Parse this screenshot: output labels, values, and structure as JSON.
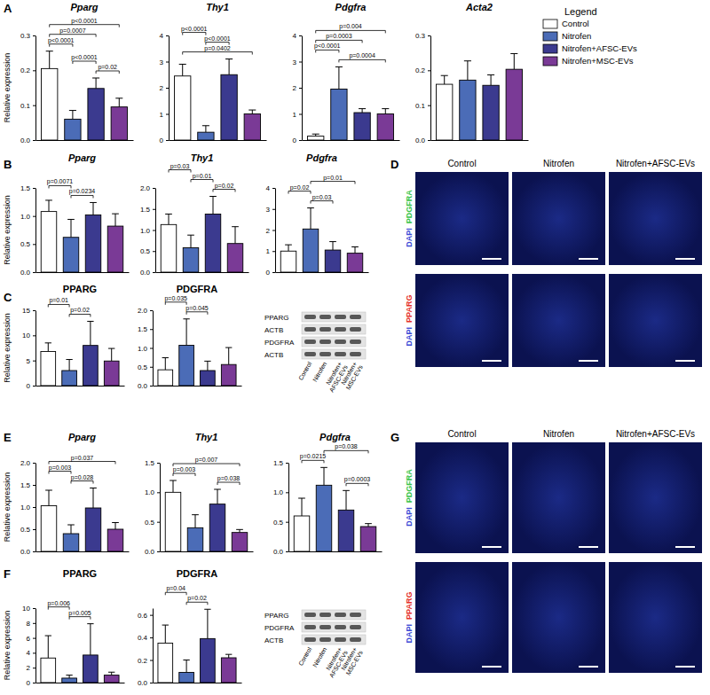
{
  "chart_data": [
    {
      "type": "bar",
      "title": "Pparg",
      "y_label": "Relative expression",
      "categories": [
        null,
        null,
        null,
        null
      ],
      "values": [
        0.205,
        0.06,
        0.148,
        0.095
      ],
      "errors": [
        0.05,
        0.025,
        0.03,
        0.025
      ],
      "colors": [
        "#ffffff",
        "#4b6cb7",
        "#3b3a8f",
        "#7a3a96"
      ],
      "ylim": [
        0,
        0.3
      ],
      "yticks": [
        {
          "value": 0,
          "label": "0.0"
        },
        0.1,
        0.2,
        0.3
      ],
      "tick_labels": "y",
      "annotations": [
        {
          "from": 0,
          "to": 3,
          "label": "p<0.0001"
        },
        {
          "from": 0,
          "to": 2,
          "label": "p=0.0007"
        },
        {
          "from": 0,
          "to": 1,
          "label": "p<0.0001"
        },
        {
          "from": 1,
          "to": 2,
          "label": "p<0.0001"
        },
        {
          "from": 2,
          "to": 3,
          "label": "p=0.02"
        }
      ]
    },
    {
      "type": "bar",
      "title": "Thy1",
      "categories": [
        null,
        null,
        null,
        null
      ],
      "values": [
        2.45,
        0.3,
        2.5,
        1.0
      ],
      "errors": [
        0.45,
        0.25,
        0.6,
        0.15
      ],
      "colors": [
        "#ffffff",
        "#4b6cb7",
        "#3b3a8f",
        "#7a3a96"
      ],
      "ylim": [
        0,
        4
      ],
      "yticks": [
        0,
        1,
        2,
        3,
        4
      ],
      "tick_labels": "y",
      "annotations": [
        {
          "from": 0,
          "to": 1,
          "label": "p<0.0001"
        },
        {
          "from": 1,
          "to": 2,
          "label": "p<0.0001"
        },
        {
          "from": 0,
          "to": 3,
          "label": "p=0.0402"
        }
      ]
    },
    {
      "type": "bar",
      "title": "Pdgfra",
      "categories": [
        null,
        null,
        null,
        null
      ],
      "values": [
        0.15,
        1.95,
        1.05,
        1.0
      ],
      "errors": [
        0.08,
        0.85,
        0.15,
        0.2
      ],
      "colors": [
        "#ffffff",
        "#4b6cb7",
        "#3b3a8f",
        "#7a3a96"
      ],
      "ylim": [
        0,
        4
      ],
      "yticks": [
        0,
        1,
        2,
        3,
        4
      ],
      "tick_labels": "y",
      "annotations": [
        {
          "from": 0,
          "to": 3,
          "label": "p=0.004"
        },
        {
          "from": 0,
          "to": 2,
          "label": "p=0.0003"
        },
        {
          "from": 0,
          "to": 1,
          "label": "p<0.0001"
        },
        {
          "from": 1,
          "to": 3,
          "label": "p=0.0004"
        }
      ]
    },
    {
      "type": "bar",
      "title": "Acta2",
      "categories": [
        null,
        null,
        null,
        null
      ],
      "values": [
        0.16,
        0.172,
        0.157,
        0.203
      ],
      "errors": [
        0.025,
        0.055,
        0.03,
        0.045
      ],
      "colors": [
        "#ffffff",
        "#4b6cb7",
        "#3b3a8f",
        "#7a3a96"
      ],
      "ylim": [
        0,
        0.3
      ],
      "yticks": [
        {
          "value": 0,
          "label": "0.0"
        },
        0.1,
        0.2,
        0.3
      ],
      "tick_labels": "y",
      "annotations": []
    },
    {
      "type": "bar",
      "title": "Pparg",
      "y_label": "Relative expression",
      "categories": [
        null,
        null,
        null,
        null
      ],
      "values": [
        1.08,
        0.62,
        1.02,
        0.82
      ],
      "errors": [
        0.2,
        0.32,
        0.22,
        0.22
      ],
      "colors": [
        "#ffffff",
        "#4b6cb7",
        "#3b3a8f",
        "#7a3a96"
      ],
      "ylim": [
        0,
        1.5
      ],
      "yticks": [
        {
          "value": 0,
          "label": "0.0"
        },
        0.5,
        {
          "value": 1,
          "label": "1.0"
        },
        1.5
      ],
      "tick_labels": "y",
      "annotations": [
        {
          "from": 0,
          "to": 1,
          "label": "p=0.0071"
        },
        {
          "from": 1,
          "to": 2,
          "label": "p=0.0234"
        }
      ]
    },
    {
      "type": "bar",
      "title": "Thy1",
      "categories": [
        null,
        null,
        null,
        null
      ],
      "values": [
        1.13,
        0.58,
        1.38,
        0.68
      ],
      "errors": [
        0.25,
        0.3,
        0.42,
        0.4
      ],
      "colors": [
        "#ffffff",
        "#4b6cb7",
        "#3b3a8f",
        "#7a3a96"
      ],
      "ylim": [
        0,
        2
      ],
      "yticks": [
        {
          "value": 0,
          "label": "0.0"
        },
        0.5,
        {
          "value": 1,
          "label": "1.0"
        },
        1.5,
        {
          "value": 2,
          "label": "2.0"
        }
      ],
      "tick_labels": "y",
      "annotations": [
        {
          "from": 0,
          "to": 1,
          "label": "p=0.03"
        },
        {
          "from": 1,
          "to": 2,
          "label": "p=0.01"
        },
        {
          "from": 2,
          "to": 3,
          "label": "p=0.02"
        }
      ]
    },
    {
      "type": "bar",
      "title": "Pdgfra",
      "categories": [
        null,
        null,
        null,
        null
      ],
      "values": [
        1.0,
        2.05,
        1.05,
        0.9
      ],
      "errors": [
        0.3,
        1.0,
        0.4,
        0.3
      ],
      "colors": [
        "#ffffff",
        "#4b6cb7",
        "#3b3a8f",
        "#7a3a96"
      ],
      "ylim": [
        0,
        4
      ],
      "yticks": [
        0,
        1,
        2,
        3,
        4
      ],
      "tick_labels": "y",
      "annotations": [
        {
          "from": 1,
          "to": 3,
          "label": "p=0.01"
        },
        {
          "from": 0,
          "to": 1,
          "label": "p=0.02"
        },
        {
          "from": 1,
          "to": 2,
          "label": "p=0.03"
        }
      ]
    },
    {
      "type": "bar",
      "title": "PPARG",
      "y_label": "Relative expression",
      "categories": [
        null,
        null,
        null,
        null
      ],
      "values": [
        6.8,
        3.0,
        8.0,
        4.9
      ],
      "errors": [
        1.7,
        2.2,
        4.8,
        2.5
      ],
      "colors": [
        "#ffffff",
        "#4b6cb7",
        "#3b3a8f",
        "#7a3a96"
      ],
      "ylim": [
        0,
        15
      ],
      "yticks": [
        0,
        5,
        10,
        15
      ],
      "tick_labels": "y",
      "annotations": [
        {
          "from": 0,
          "to": 1,
          "label": "p=0.01"
        },
        {
          "from": 1,
          "to": 2,
          "label": "p=0.02"
        }
      ]
    },
    {
      "type": "bar",
      "title": "PDGFRA",
      "categories": [
        null,
        null,
        null,
        null
      ],
      "values": [
        0.42,
        1.07,
        0.4,
        0.56
      ],
      "errors": [
        0.32,
        0.7,
        0.25,
        0.45
      ],
      "colors": [
        "#ffffff",
        "#4b6cb7",
        "#3b3a8f",
        "#7a3a96"
      ],
      "ylim": [
        0,
        2
      ],
      "yticks": [
        {
          "value": 0,
          "label": "0.0"
        },
        0.5,
        {
          "value": 1,
          "label": "1.0"
        },
        1.5,
        {
          "value": 2,
          "label": "2.0"
        }
      ],
      "tick_labels": "y",
      "annotations": [
        {
          "from": 0,
          "to": 1,
          "label": "p=0.035"
        },
        {
          "from": 1,
          "to": 2,
          "label": "p=0.045"
        }
      ]
    },
    {
      "type": "bar",
      "title": "Pparg",
      "y_label": "Relative expression",
      "categories": [
        null,
        null,
        null,
        null
      ],
      "values": [
        1.03,
        0.4,
        0.98,
        0.5
      ],
      "errors": [
        0.35,
        0.2,
        0.45,
        0.15
      ],
      "colors": [
        "#ffffff",
        "#4b6cb7",
        "#3b3a8f",
        "#7a3a96"
      ],
      "ylim": [
        0,
        2
      ],
      "yticks": [
        {
          "value": 0,
          "label": "0.0"
        },
        0.5,
        {
          "value": 1,
          "label": "1.0"
        },
        1.5,
        {
          "value": 2,
          "label": "2.0"
        }
      ],
      "tick_labels": "y",
      "annotations": [
        {
          "from": 0,
          "to": 3,
          "label": "p=0.037"
        },
        {
          "from": 0,
          "to": 1,
          "label": "p=0.003"
        },
        {
          "from": 1,
          "to": 2,
          "label": "p=0.028"
        }
      ]
    },
    {
      "type": "bar",
      "title": "Thy1",
      "categories": [
        null,
        null,
        null,
        null
      ],
      "values": [
        1.0,
        0.4,
        0.8,
        0.32
      ],
      "errors": [
        0.2,
        0.22,
        0.25,
        0.05
      ],
      "colors": [
        "#ffffff",
        "#4b6cb7",
        "#3b3a8f",
        "#7a3a96"
      ],
      "ylim": [
        0,
        1.5
      ],
      "yticks": [
        {
          "value": 0,
          "label": "0.0"
        },
        0.5,
        {
          "value": 1,
          "label": "1.0"
        },
        1.5
      ],
      "tick_labels": "y",
      "annotations": [
        {
          "from": 0,
          "to": 3,
          "label": "p=0.007"
        },
        {
          "from": 0,
          "to": 1,
          "label": "p=0.003"
        },
        {
          "from": 2,
          "to": 3,
          "label": "p=0.038"
        }
      ]
    },
    {
      "type": "bar",
      "title": "Pdgfra",
      "categories": [
        null,
        null,
        null,
        null
      ],
      "values": [
        0.6,
        1.12,
        0.7,
        0.42
      ],
      "errors": [
        0.3,
        0.3,
        0.33,
        0.05
      ],
      "colors": [
        "#ffffff",
        "#4b6cb7",
        "#3b3a8f",
        "#7a3a96"
      ],
      "ylim": [
        0,
        1.5
      ],
      "yticks": [
        {
          "value": 0,
          "label": "0.0"
        },
        0.5,
        {
          "value": 1,
          "label": "1.0"
        },
        1.5
      ],
      "tick_labels": "y",
      "annotations": [
        {
          "from": 1,
          "to": 3,
          "label": "p=0.038"
        },
        {
          "from": 0,
          "to": 1,
          "label": "p=0.0215"
        },
        {
          "from": 2,
          "to": 3,
          "label": "p=0.0003"
        }
      ]
    },
    {
      "type": "bar",
      "title": "PPARG",
      "y_label": "Relative expression",
      "categories": [
        null,
        null,
        null,
        null
      ],
      "values": [
        3.3,
        0.6,
        3.7,
        1.0
      ],
      "errors": [
        3.0,
        0.4,
        4.2,
        0.4
      ],
      "colors": [
        "#ffffff",
        "#4b6cb7",
        "#3b3a8f",
        "#7a3a96"
      ],
      "ylim": [
        0,
        10
      ],
      "yticks": [
        0,
        2,
        4,
        6,
        8,
        10
      ],
      "tick_labels": "y",
      "annotations": [
        {
          "from": 0,
          "to": 1,
          "label": "p=0.006"
        },
        {
          "from": 1,
          "to": 2,
          "label": "p=0.005"
        }
      ]
    },
    {
      "type": "bar",
      "title": "PDGFRA",
      "categories": [
        null,
        null,
        null,
        null
      ],
      "values": [
        0.35,
        0.09,
        0.39,
        0.22
      ],
      "errors": [
        0.16,
        0.11,
        0.26,
        0.03
      ],
      "colors": [
        "#ffffff",
        "#4b6cb7",
        "#3b3a8f",
        "#7a3a96"
      ],
      "ylim": [
        0,
        0.66
      ],
      "yticks": [
        {
          "value": 0,
          "label": "0.0"
        },
        0.2,
        0.4,
        0.6
      ],
      "tick_labels": "y",
      "annotations": [
        {
          "from": 0,
          "to": 1,
          "label": "p=0.04"
        },
        {
          "from": 1,
          "to": 2,
          "label": "p=0.02"
        }
      ]
    }
  ],
  "panel_labels": [
    "A",
    "B",
    "C",
    "D",
    "E",
    "F",
    "G"
  ],
  "figure_legend": {
    "title": "Legend",
    "entries": [
      {
        "name": "Control",
        "color": "#ffffff"
      },
      {
        "name": "Nitrofen",
        "color": "#4b6cb7"
      },
      {
        "name": "Nitrofen+AFSC-EVs",
        "color": "#3b3a8f"
      },
      {
        "name": "Nitrofen+MSC-EVs",
        "color": "#7a3a96"
      }
    ]
  },
  "blots": [
    {
      "rows": [
        "PPARG",
        "ACTB",
        "PDGFRA",
        "ACTB"
      ],
      "lanes": [
        [
          "Control"
        ],
        [
          "Nitrofen"
        ],
        [
          "Nitrofen+",
          "AFSC-EVs"
        ],
        [
          "Nitrofen+",
          "MSC-EVs"
        ]
      ]
    },
    {
      "rows": [
        "PPARG",
        "PDGFRA",
        "ACTB"
      ],
      "lanes": [
        [
          "Control"
        ],
        [
          "Nitrofen"
        ],
        [
          "Nitrofen+",
          "AFSC-EVs"
        ],
        [
          "Nitrofen+",
          "MSC-EVs"
        ]
      ]
    }
  ],
  "images": [
    {
      "columns": [
        "Control",
        "Nitrofen",
        "Nitrofen+AFSC-EVs"
      ],
      "rows": [
        {
          "stain": "PDGFRA",
          "stain_color": "#39c44a",
          "counterstain": "DAPI",
          "counterstain_color": "#3b4bd6"
        },
        {
          "stain": "PPARG",
          "stain_color": "#e5332a",
          "counterstain": "DAPI",
          "counterstain_color": "#3b4bd6"
        }
      ]
    },
    {
      "columns": [
        "Control",
        "Nitrofen",
        "Nitrofen+AFSC-EVs"
      ],
      "rows": [
        {
          "stain": "PDGFRA",
          "stain_color": "#39c44a",
          "counterstain": "DAPI",
          "counterstain_color": "#3b4bd6"
        },
        {
          "stain": "PPARG",
          "stain_color": "#e5332a",
          "counterstain": "DAPI",
          "counterstain_color": "#3b4bd6"
        }
      ]
    }
  ]
}
